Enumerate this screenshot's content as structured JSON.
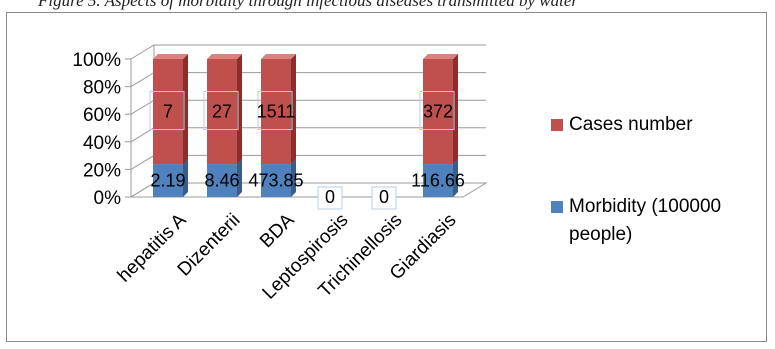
{
  "caption": "Figure 5. Aspects of morbidity through infectious diseases transmitted by water",
  "colors": {
    "cases": "#c0504d",
    "cases_dark": "#8c2f2c",
    "morb": "#4f81bd",
    "morb_dark": "#385d8a",
    "grid": "#9a9a9a",
    "wall": "#ffffff",
    "label_box": "#b8cce4"
  },
  "chart_data": {
    "type": "bar",
    "stacked": "percent",
    "title": "",
    "xlabel": "",
    "ylabel": "",
    "ylim": [
      0,
      100
    ],
    "y_ticks": [
      "0%",
      "20%",
      "40%",
      "60%",
      "80%",
      "100%"
    ],
    "categories": [
      "hepatitis A",
      "Dizenterii",
      "BDA",
      "Leptospirosis",
      "Trichinellosis",
      "Giardiasis"
    ],
    "series": [
      {
        "name": "Morbidity (100000 people)",
        "values": [
          2.19,
          8.46,
          473.85,
          0,
          0,
          116.66
        ],
        "labels": [
          "2.19",
          "8.46",
          "473.85",
          "0",
          "0",
          "116.66"
        ]
      },
      {
        "name": "Cases number",
        "values": [
          7,
          27,
          1511,
          0,
          0,
          372
        ],
        "labels": [
          "7",
          "27",
          "1511",
          "",
          "",
          "372"
        ]
      }
    ],
    "legend_position": "right",
    "grid": true
  }
}
